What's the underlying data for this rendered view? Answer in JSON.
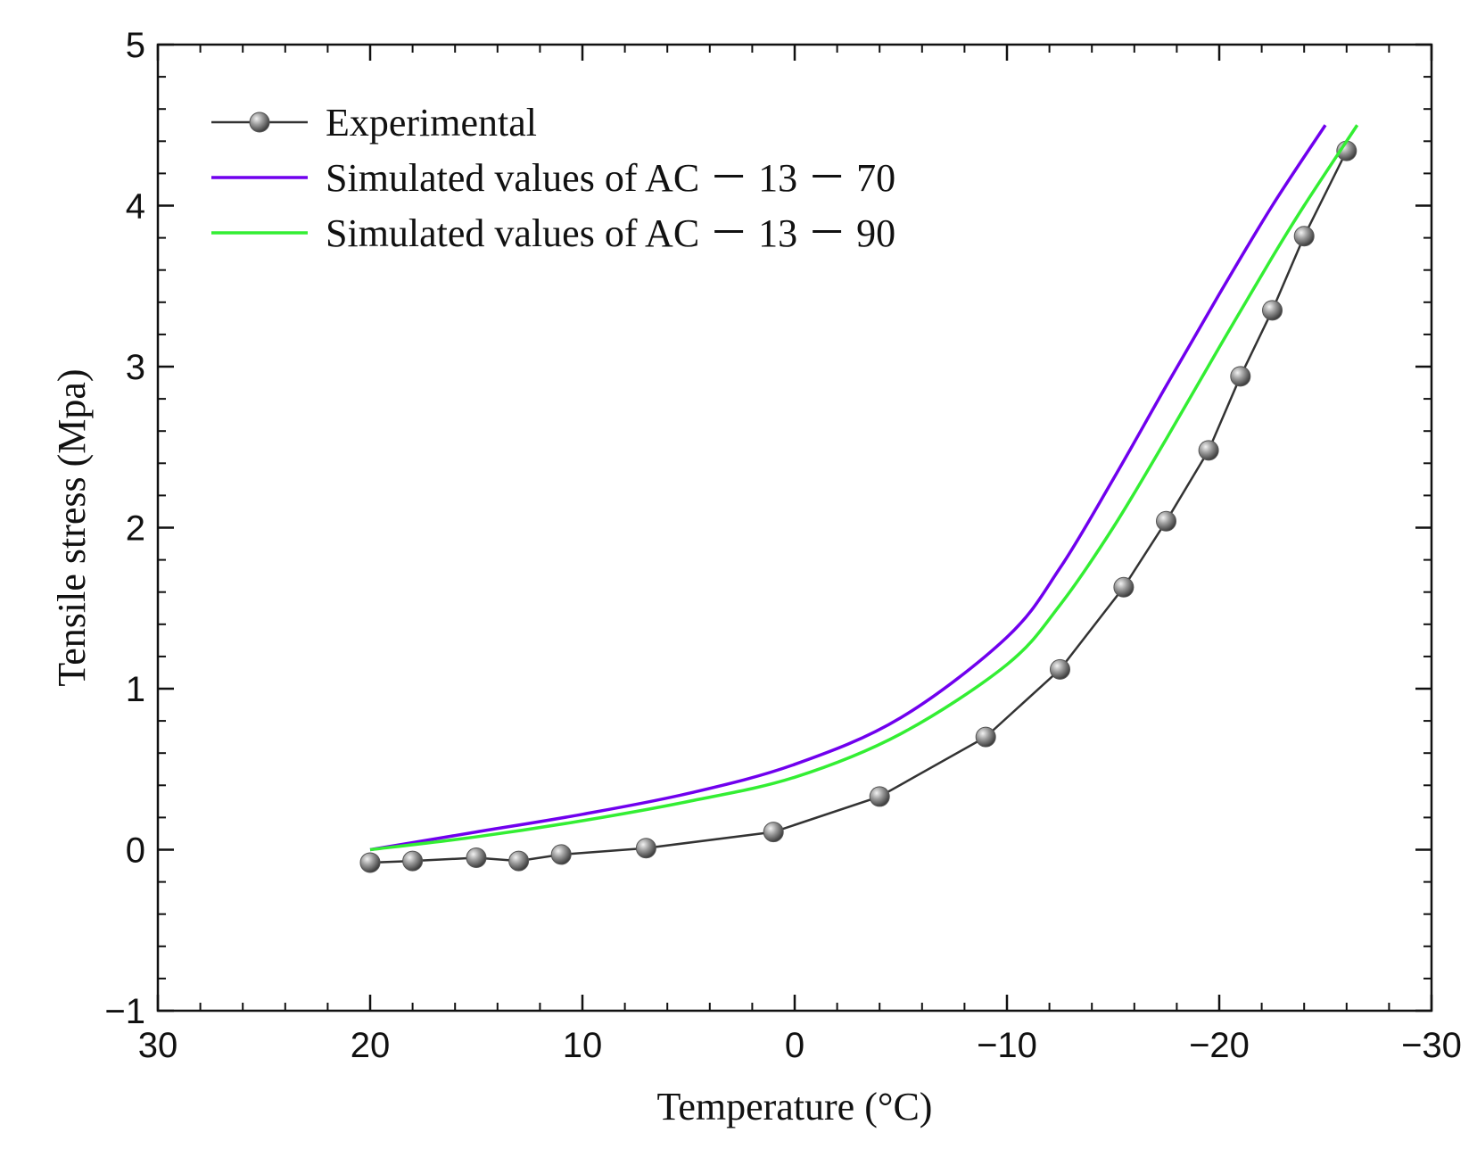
{
  "chart_data": {
    "type": "line",
    "xlabel": "Temperature (°C)",
    "ylabel": "Tensile stress (Mpa)",
    "xlim": [
      30,
      -30
    ],
    "ylim": [
      -1,
      5
    ],
    "x_ticks": [
      30,
      20,
      10,
      0,
      -10,
      -20,
      -30
    ],
    "y_ticks": [
      -1,
      0,
      1,
      2,
      3,
      4,
      5
    ],
    "x_tick_labels": [
      "30",
      "20",
      "10",
      "0",
      "−10",
      "−20",
      "−30"
    ],
    "y_tick_labels": [
      "−1",
      "0",
      "1",
      "2",
      "3",
      "4",
      "5"
    ],
    "grid": false,
    "legend_position": "top-left",
    "series": [
      {
        "name": "Experimental",
        "color": "#333333",
        "marker": "sphere",
        "x": [
          20,
          18,
          15,
          13,
          11,
          7,
          1,
          -4,
          -9,
          -12.5,
          -15.5,
          -17.5,
          -19.5,
          -21,
          -22.5,
          -24,
          -26
        ],
        "y": [
          -0.08,
          -0.07,
          -0.05,
          -0.07,
          -0.03,
          0.01,
          0.11,
          0.33,
          0.7,
          1.12,
          1.63,
          2.04,
          2.48,
          2.94,
          3.35,
          3.81,
          4.34
        ]
      },
      {
        "name": "Simulated values of AC － 13 － 70",
        "color": "#7000ee",
        "marker": "none",
        "x": [
          20,
          15,
          10,
          5,
          0,
          -5,
          -10,
          -12.5,
          -15,
          -17.5,
          -20,
          -22.5,
          -25
        ],
        "y": [
          0.0,
          0.11,
          0.22,
          0.35,
          0.53,
          0.82,
          1.32,
          1.75,
          2.3,
          2.88,
          3.45,
          4.0,
          4.5
        ]
      },
      {
        "name": "Simulated values of AC － 13 － 90",
        "color": "#33ee33",
        "marker": "none",
        "x": [
          20,
          15,
          10,
          5,
          0,
          -5,
          -10,
          -12.5,
          -15,
          -17.5,
          -20,
          -22.5,
          -24,
          -26.5
        ],
        "y": [
          0.0,
          0.08,
          0.18,
          0.3,
          0.45,
          0.72,
          1.15,
          1.52,
          2.0,
          2.55,
          3.12,
          3.68,
          4.0,
          4.5
        ]
      }
    ]
  }
}
